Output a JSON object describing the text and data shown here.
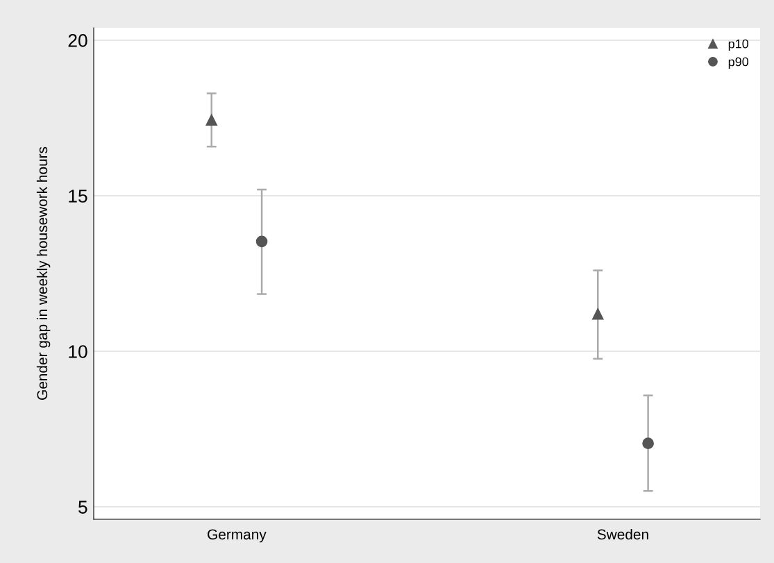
{
  "chart_data": {
    "type": "scatter",
    "ylabel": "Gender gap in weekly housework hours",
    "categories": [
      "Germany",
      "Sweden"
    ],
    "series": [
      {
        "name": "p10",
        "color": "#555555",
        "marker": "triangle",
        "values": [
          17.44,
          11.2
        ],
        "errors": [
          [
            16.58,
            18.29
          ],
          [
            9.76,
            12.6
          ]
        ]
      },
      {
        "name": "p90",
        "color": "#555555",
        "marker": "circle",
        "values": [
          13.53,
          7.04
        ],
        "errors": [
          [
            11.84,
            15.2
          ],
          [
            5.51,
            8.58
          ]
        ]
      }
    ],
    "ylim": [
      4.6,
      20.4
    ],
    "yticks": [
      5,
      10,
      15,
      20
    ],
    "grid": "y",
    "legend": "top right"
  }
}
